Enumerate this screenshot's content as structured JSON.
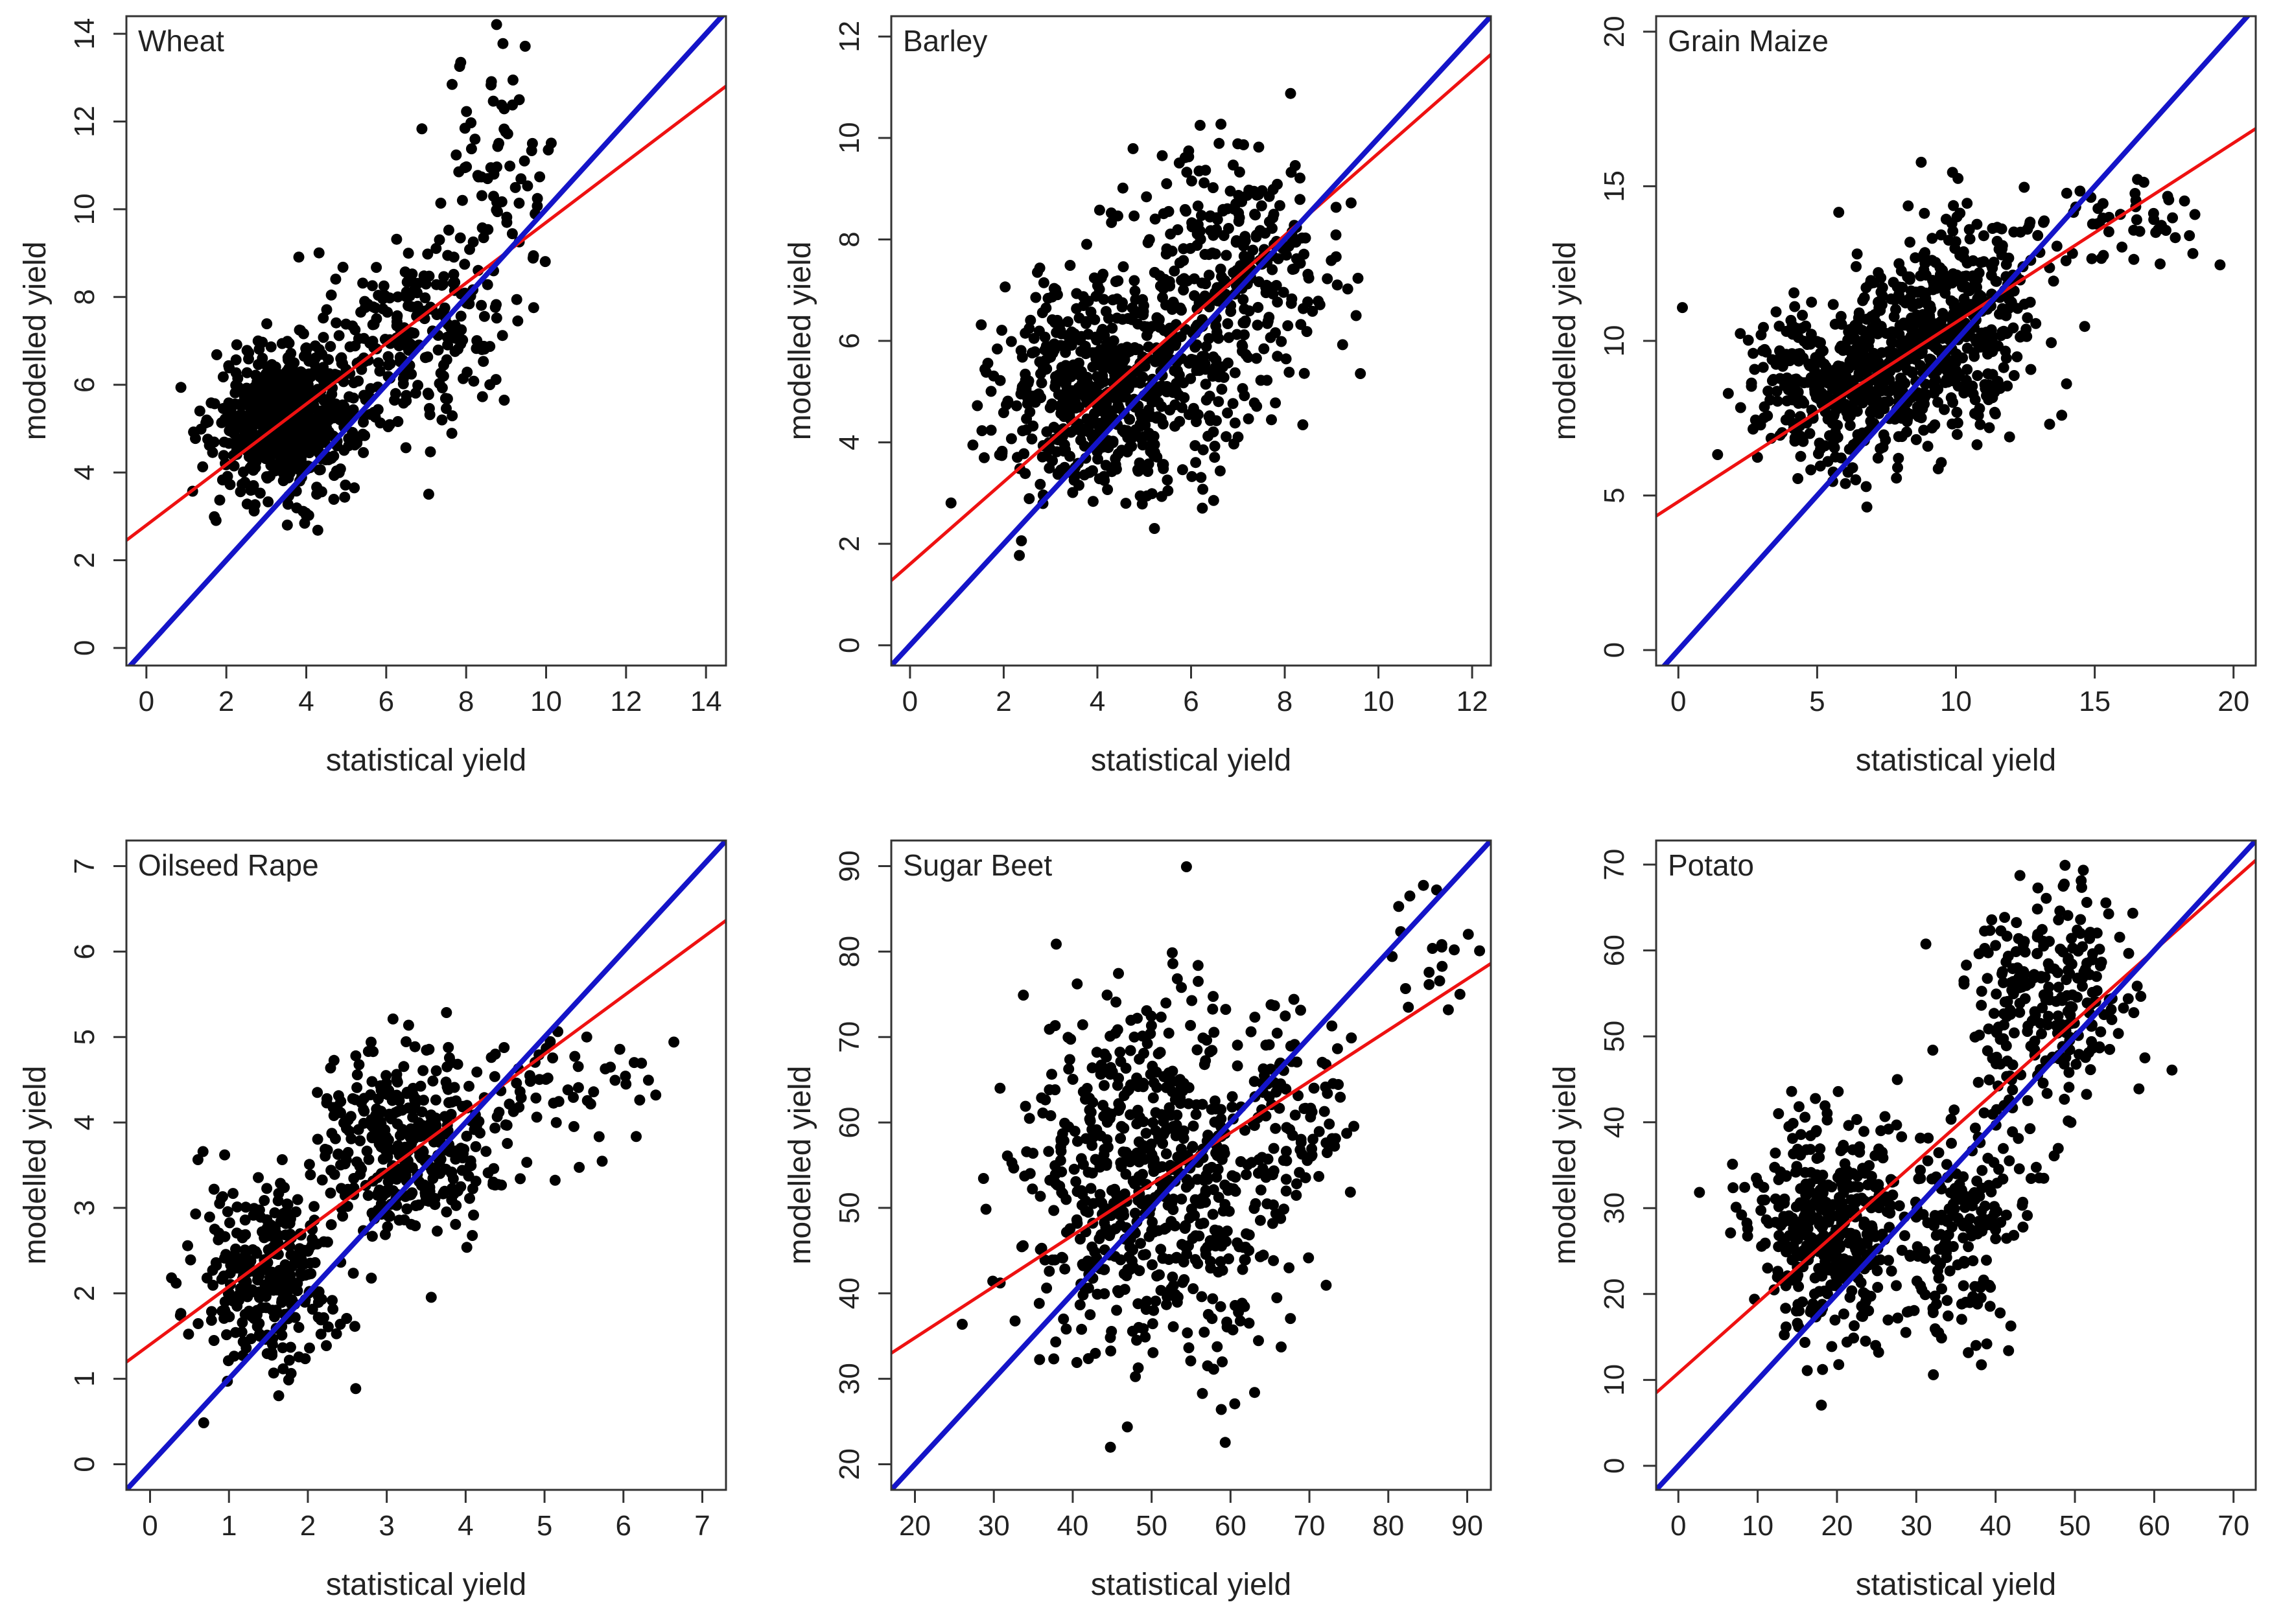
{
  "figure": {
    "colors": {
      "points": "#000000",
      "regression_line": "#ee1111",
      "identity_line": "#1414c8",
      "axes": "#333333"
    }
  },
  "chart_data": [
    {
      "type": "scatter",
      "title": "Wheat",
      "xlabel": "statistical yield",
      "ylabel": "modelled yield",
      "xlim": [
        -0.5,
        14.5
      ],
      "ylim": [
        -0.4,
        14.4
      ],
      "xticks": [
        0,
        2,
        4,
        6,
        8,
        10,
        12,
        14
      ],
      "yticks": [
        0,
        2,
        4,
        6,
        8,
        10,
        12,
        14
      ],
      "regression": {
        "intercept": 2.8,
        "slope": 0.69
      },
      "identity_line": true,
      "n_points": 1000,
      "clusters": [
        {
          "n": 700,
          "cx": 3.5,
          "cy": 5.2,
          "sx": 0.9,
          "sy": 0.8
        },
        {
          "n": 220,
          "cx": 6.8,
          "cy": 7.2,
          "sx": 1.0,
          "sy": 1.1
        },
        {
          "n": 80,
          "cx": 8.8,
          "cy": 10.5,
          "sx": 0.7,
          "sy": 1.5
        }
      ]
    },
    {
      "type": "scatter",
      "title": "Barley",
      "xlabel": "statistical yield",
      "ylabel": "modelled yield",
      "xlim": [
        -0.4,
        12.4
      ],
      "ylim": [
        -0.4,
        12.4
      ],
      "xticks": [
        0,
        2,
        4,
        6,
        8,
        10,
        12
      ],
      "yticks": [
        0,
        2,
        4,
        6,
        8,
        10,
        12
      ],
      "regression": {
        "intercept": 1.6,
        "slope": 0.81
      },
      "identity_line": true,
      "n_points": 900,
      "clusters": [
        {
          "n": 600,
          "cx": 4.3,
          "cy": 5.0,
          "sx": 1.2,
          "sy": 1.1
        },
        {
          "n": 300,
          "cx": 6.8,
          "cy": 7.3,
          "sx": 1.1,
          "sy": 1.2
        }
      ]
    },
    {
      "type": "scatter",
      "title": "Grain Maize",
      "xlabel": "statistical yield",
      "ylabel": "modelled yield",
      "xlim": [
        -0.8,
        20.8
      ],
      "ylim": [
        -0.5,
        20.5
      ],
      "xticks": [
        0,
        5,
        10,
        15,
        20
      ],
      "yticks": [
        0,
        5,
        10,
        15,
        20
      ],
      "regression": {
        "intercept": 4.8,
        "slope": 0.58
      },
      "identity_line": true,
      "n_points": 900,
      "clusters": [
        {
          "n": 450,
          "cx": 6.0,
          "cy": 8.6,
          "sx": 1.8,
          "sy": 1.4
        },
        {
          "n": 400,
          "cx": 10.0,
          "cy": 10.8,
          "sx": 1.7,
          "sy": 1.7
        },
        {
          "n": 50,
          "cx": 15.5,
          "cy": 13.5,
          "sx": 2.0,
          "sy": 1.0
        }
      ]
    },
    {
      "type": "scatter",
      "title": "Oilseed Rape",
      "xlabel": "statistical yield",
      "ylabel": "modelled yield",
      "xlim": [
        -0.3,
        7.3
      ],
      "ylim": [
        -0.3,
        7.3
      ],
      "xticks": [
        0,
        1,
        2,
        3,
        4,
        5,
        6,
        7
      ],
      "yticks": [
        0,
        1,
        2,
        3,
        4,
        5,
        6,
        7
      ],
      "regression": {
        "intercept": 1.4,
        "slope": 0.68
      },
      "identity_line": true,
      "n_points": 750,
      "clusters": [
        {
          "n": 300,
          "cx": 1.5,
          "cy": 2.2,
          "sx": 0.45,
          "sy": 0.55
        },
        {
          "n": 400,
          "cx": 3.3,
          "cy": 3.7,
          "sx": 0.6,
          "sy": 0.55
        },
        {
          "n": 50,
          "cx": 5.3,
          "cy": 4.4,
          "sx": 0.6,
          "sy": 0.35
        }
      ]
    },
    {
      "type": "scatter",
      "title": "Sugar Beet",
      "xlabel": "statistical yield",
      "ylabel": "modelled yield",
      "xlim": [
        17,
        93
      ],
      "ylim": [
        17,
        93
      ],
      "xticks": [
        20,
        30,
        40,
        50,
        60,
        70,
        80,
        90
      ],
      "yticks": [
        20,
        30,
        40,
        50,
        60,
        70,
        80,
        90
      ],
      "regression": {
        "intercept": 22.8,
        "slope": 0.6
      },
      "identity_line": true,
      "n_points": 750,
      "clusters": [
        {
          "n": 650,
          "cx": 50,
          "cy": 53,
          "sx": 9,
          "sy": 11
        },
        {
          "n": 80,
          "cx": 68,
          "cy": 62,
          "sx": 4,
          "sy": 6
        },
        {
          "n": 20,
          "cx": 85,
          "cy": 80,
          "sx": 4,
          "sy": 5
        }
      ]
    },
    {
      "type": "scatter",
      "title": "Potato",
      "xlabel": "statistical yield",
      "ylabel": "modelled yield",
      "xlim": [
        -2.8,
        72.8
      ],
      "ylim": [
        -2.8,
        72.8
      ],
      "xticks": [
        0,
        10,
        20,
        30,
        40,
        50,
        60,
        70
      ],
      "yticks": [
        0,
        10,
        20,
        30,
        40,
        50,
        60,
        70
      ],
      "regression": {
        "intercept": 10.8,
        "slope": 0.82
      },
      "identity_line": true,
      "n_points": 850,
      "clusters": [
        {
          "n": 420,
          "cx": 19,
          "cy": 28,
          "sx": 5,
          "sy": 6
        },
        {
          "n": 130,
          "cx": 35,
          "cy": 26,
          "sx": 3.5,
          "sy": 7
        },
        {
          "n": 250,
          "cx": 47,
          "cy": 55,
          "sx": 5,
          "sy": 6
        },
        {
          "n": 50,
          "cx": 40,
          "cy": 35,
          "sx": 4,
          "sy": 6
        }
      ]
    }
  ]
}
